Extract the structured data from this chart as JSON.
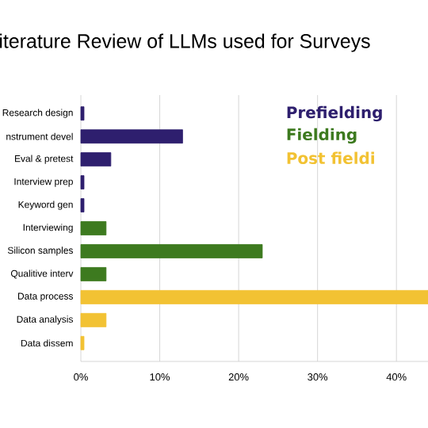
{
  "chart_data": {
    "type": "bar",
    "orientation": "horizontal",
    "title": "iterature Review of LLMs used for Surveys",
    "categories": [
      "Research design",
      "nstrument devel",
      "Eval & pretest",
      "Interview prep",
      "Keyword gen",
      "Interviewing",
      "Silicon samples",
      "Qualitive interv",
      "Data process",
      "Data analysis",
      "Data dissem"
    ],
    "series": [
      {
        "name": "Prefielding",
        "color": "#2e1f6e",
        "values": [
          0.4,
          12.9,
          3.8,
          0.4,
          0.4,
          null,
          null,
          null,
          null,
          null,
          null
        ]
      },
      {
        "name": "Fielding",
        "color": "#3d7a1f",
        "values": [
          null,
          null,
          null,
          null,
          null,
          3.2,
          23,
          3.2,
          null,
          null,
          null
        ]
      },
      {
        "name": "Post fieldi",
        "color": "#f2c233",
        "values": [
          null,
          null,
          null,
          null,
          null,
          null,
          null,
          null,
          44,
          3.2,
          0.4
        ]
      }
    ],
    "xlim": [
      0,
      44
    ],
    "xticks": [
      {
        "value": 0,
        "label": "0%"
      },
      {
        "value": 10,
        "label": "10%"
      },
      {
        "value": 20,
        "label": "20%"
      },
      {
        "value": 30,
        "label": "30%"
      },
      {
        "value": 40,
        "label": "40%"
      }
    ],
    "grid": "x",
    "legend": "top right"
  }
}
